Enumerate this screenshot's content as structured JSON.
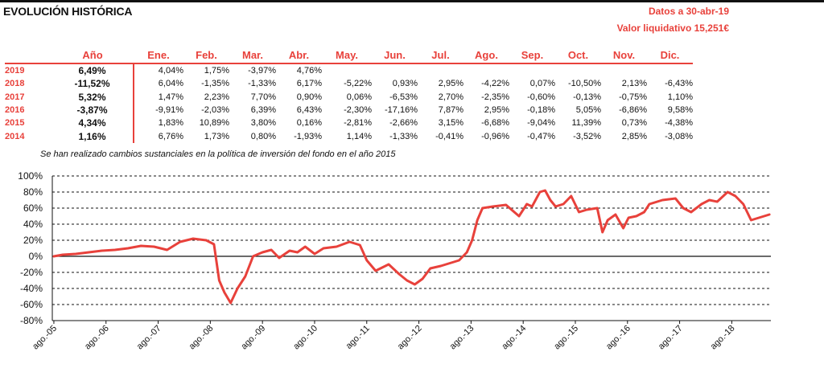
{
  "header": {
    "title": "EVOLUCIÓN HISTÓRICA",
    "date_label": "Datos a 30-abr-19",
    "nav_label": "Valor liquidativo 15,251€"
  },
  "table": {
    "headers": [
      "Año",
      "Ene.",
      "Feb.",
      "Mar.",
      "Abr.",
      "May.",
      "Jun.",
      "Jul.",
      "Ago.",
      "Sep.",
      "Oct.",
      "Nov.",
      "Dic."
    ],
    "rows": [
      {
        "year": "2019",
        "annual": "6,49%",
        "months": [
          "4,04%",
          "1,75%",
          "-3,97%",
          "4,76%",
          "",
          "",
          "",
          "",
          "",
          "",
          "",
          ""
        ]
      },
      {
        "year": "2018",
        "annual": "-11,52%",
        "months": [
          "6,04%",
          "-1,35%",
          "-1,33%",
          "6,17%",
          "-5,22%",
          "0,93%",
          "2,95%",
          "-4,22%",
          "0,07%",
          "-10,50%",
          "2,13%",
          "-6,43%"
        ]
      },
      {
        "year": "2017",
        "annual": "5,32%",
        "months": [
          "1,47%",
          "2,23%",
          "7,70%",
          "0,90%",
          "0,06%",
          "-6,53%",
          "2,70%",
          "-2,35%",
          "-0,60%",
          "-0,13%",
          "-0,75%",
          "1,10%"
        ]
      },
      {
        "year": "2016",
        "annual": "-3,87%",
        "months": [
          "-9,91%",
          "-2,03%",
          "6,39%",
          "6,43%",
          "-2,30%",
          "-17,16%",
          "7,87%",
          "2,95%",
          "-0,18%",
          "5,05%",
          "-6,86%",
          "9,58%"
        ]
      },
      {
        "year": "2015",
        "annual": "4,34%",
        "months": [
          "1,83%",
          "10,89%",
          "3,80%",
          "0,16%",
          "-2,81%",
          "-2,66%",
          "3,15%",
          "-6,68%",
          "-9,04%",
          "11,39%",
          "0,73%",
          "-4,38%"
        ]
      },
      {
        "year": "2014",
        "annual": "1,16%",
        "months": [
          "6,76%",
          "1,73%",
          "0,80%",
          "-1,93%",
          "1,14%",
          "-1,33%",
          "-0,41%",
          "-0,96%",
          "-0,47%",
          "-3,52%",
          "2,85%",
          "-3,08%"
        ]
      }
    ],
    "note": "Se han realizado cambios sustanciales en la política de inversión del fondo en el año 2015"
  },
  "chart_data": {
    "type": "line",
    "title": "",
    "xlabel": "",
    "ylabel": "",
    "ylim": [
      -80,
      100
    ],
    "yticks": [
      100,
      80,
      60,
      40,
      20,
      0,
      -20,
      -40,
      -60,
      -80
    ],
    "ytick_labels": [
      "100%",
      "80%",
      "60%",
      "40%",
      "20%",
      "0%",
      "-20%",
      "-40%",
      "-60%",
      "-80%"
    ],
    "xticks": [
      "ago.-05",
      "ago.-06",
      "ago.-07",
      "ago.-08",
      "ago.-09",
      "ago.-10",
      "ago.-11",
      "ago.-12",
      "ago.-13",
      "ago.-14",
      "ago.-15",
      "ago.-16",
      "ago.-17",
      "ago.-18"
    ],
    "xlim": [
      2005.55,
      2019.33
    ],
    "grid": "horizontal-dashed",
    "color": "#e8413b",
    "series": [
      {
        "x": [
          2005.58,
          2005.75,
          2006.0,
          2006.25,
          2006.5,
          2006.75,
          2007.0,
          2007.25,
          2007.5,
          2007.75,
          2008.0,
          2008.25,
          2008.5,
          2008.65,
          2008.75,
          2008.85,
          2008.97,
          2009.1,
          2009.25,
          2009.4,
          2009.58,
          2009.75,
          2009.9,
          2010.1,
          2010.25,
          2010.4,
          2010.58,
          2010.75,
          2011.0,
          2011.25,
          2011.45,
          2011.58,
          2011.75,
          2012.0,
          2012.2,
          2012.35,
          2012.5,
          2012.65,
          2012.8,
          2013.0,
          2013.2,
          2013.35,
          2013.5,
          2013.6,
          2013.7,
          2013.8,
          2014.0,
          2014.25,
          2014.5,
          2014.65,
          2014.75,
          2014.9,
          2015.0,
          2015.1,
          2015.2,
          2015.35,
          2015.5,
          2015.65,
          2015.8,
          2016.0,
          2016.1,
          2016.2,
          2016.35,
          2016.5,
          2016.6,
          2016.75,
          2016.9,
          2017.0,
          2017.25,
          2017.5,
          2017.65,
          2017.8,
          2018.0,
          2018.15,
          2018.3,
          2018.5,
          2018.65,
          2018.8,
          2018.95,
          2019.1,
          2019.3
        ],
        "y": [
          0,
          2,
          3,
          5,
          7,
          8,
          10,
          13,
          12,
          8,
          18,
          22,
          20,
          15,
          -30,
          -45,
          -58,
          -40,
          -25,
          0,
          5,
          8,
          -2,
          7,
          5,
          12,
          3,
          10,
          12,
          18,
          14,
          -5,
          -18,
          -10,
          -22,
          -30,
          -35,
          -28,
          -15,
          -12,
          -8,
          -5,
          5,
          20,
          45,
          60,
          62,
          64,
          50,
          65,
          62,
          80,
          82,
          70,
          62,
          65,
          75,
          55,
          58,
          60,
          30,
          45,
          52,
          35,
          48,
          50,
          55,
          65,
          70,
          72,
          60,
          55,
          65,
          70,
          68,
          80,
          75,
          65,
          45,
          48,
          52
        ]
      }
    ]
  }
}
